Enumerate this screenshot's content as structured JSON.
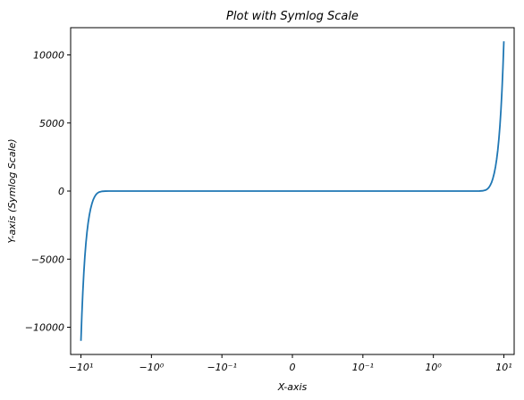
{
  "chart_data": {
    "type": "line",
    "title": "Plot with Symlog Scale",
    "xlabel": "X-axis",
    "ylabel": "Y-axis (Symlog Scale)",
    "x_scale": "symlog",
    "x_linthresh": 0.1,
    "xlim": [
      -14,
      14
    ],
    "ylim": [
      -12000,
      12000
    ],
    "x_ticks": [
      {
        "value": -10,
        "label": "−10¹"
      },
      {
        "value": -1,
        "label": "−10⁰"
      },
      {
        "value": -0.1,
        "label": "−10⁻¹"
      },
      {
        "value": 0,
        "label": "0"
      },
      {
        "value": 0.1,
        "label": "10⁻¹"
      },
      {
        "value": 1,
        "label": "10⁰"
      },
      {
        "value": 10,
        "label": "10¹"
      }
    ],
    "y_ticks": [
      {
        "value": -10000,
        "label": "−10000"
      },
      {
        "value": -5000,
        "label": "−5000"
      },
      {
        "value": 0,
        "label": "0"
      },
      {
        "value": 5000,
        "label": "5000"
      },
      {
        "value": 10000,
        "label": "10000"
      }
    ],
    "grid": false,
    "legend": "none",
    "series": [
      {
        "color": "#1f77b4",
        "x": [
          -10,
          -9.7,
          -9.4,
          -9.1,
          -8.8,
          -8.5,
          -8.2,
          -7.9,
          -7.6,
          -7.3,
          -7.0,
          -6.7,
          -6.4,
          -6.1,
          -5.8,
          -5.5,
          -5.0,
          -4.5,
          -4.0,
          -3.0,
          -2.0,
          -1.0,
          -0.5,
          -0.2,
          -0.1,
          -0.05,
          0,
          0.05,
          0.1,
          0.2,
          0.5,
          1.0,
          2.0,
          3.0,
          4.0,
          4.5,
          5.0,
          5.5,
          5.8,
          6.1,
          6.4,
          6.7,
          7.0,
          7.3,
          7.6,
          7.9,
          8.2,
          8.5,
          8.8,
          9.1,
          9.4,
          9.7,
          10
        ],
        "y": [
          -11000,
          -9050,
          -7390,
          -5990,
          -4810,
          -3830,
          -3010,
          -2330,
          -1770,
          -1310,
          -940,
          -640,
          -420,
          -250,
          -140,
          -70,
          -20,
          -5,
          -1,
          0,
          0,
          0,
          0,
          0,
          0,
          0,
          0,
          0,
          0,
          0,
          0,
          0,
          0,
          0,
          1,
          5,
          20,
          70,
          140,
          250,
          420,
          640,
          940,
          1310,
          1770,
          2330,
          3010,
          3830,
          4810,
          5990,
          7390,
          9050,
          11000
        ]
      }
    ]
  }
}
